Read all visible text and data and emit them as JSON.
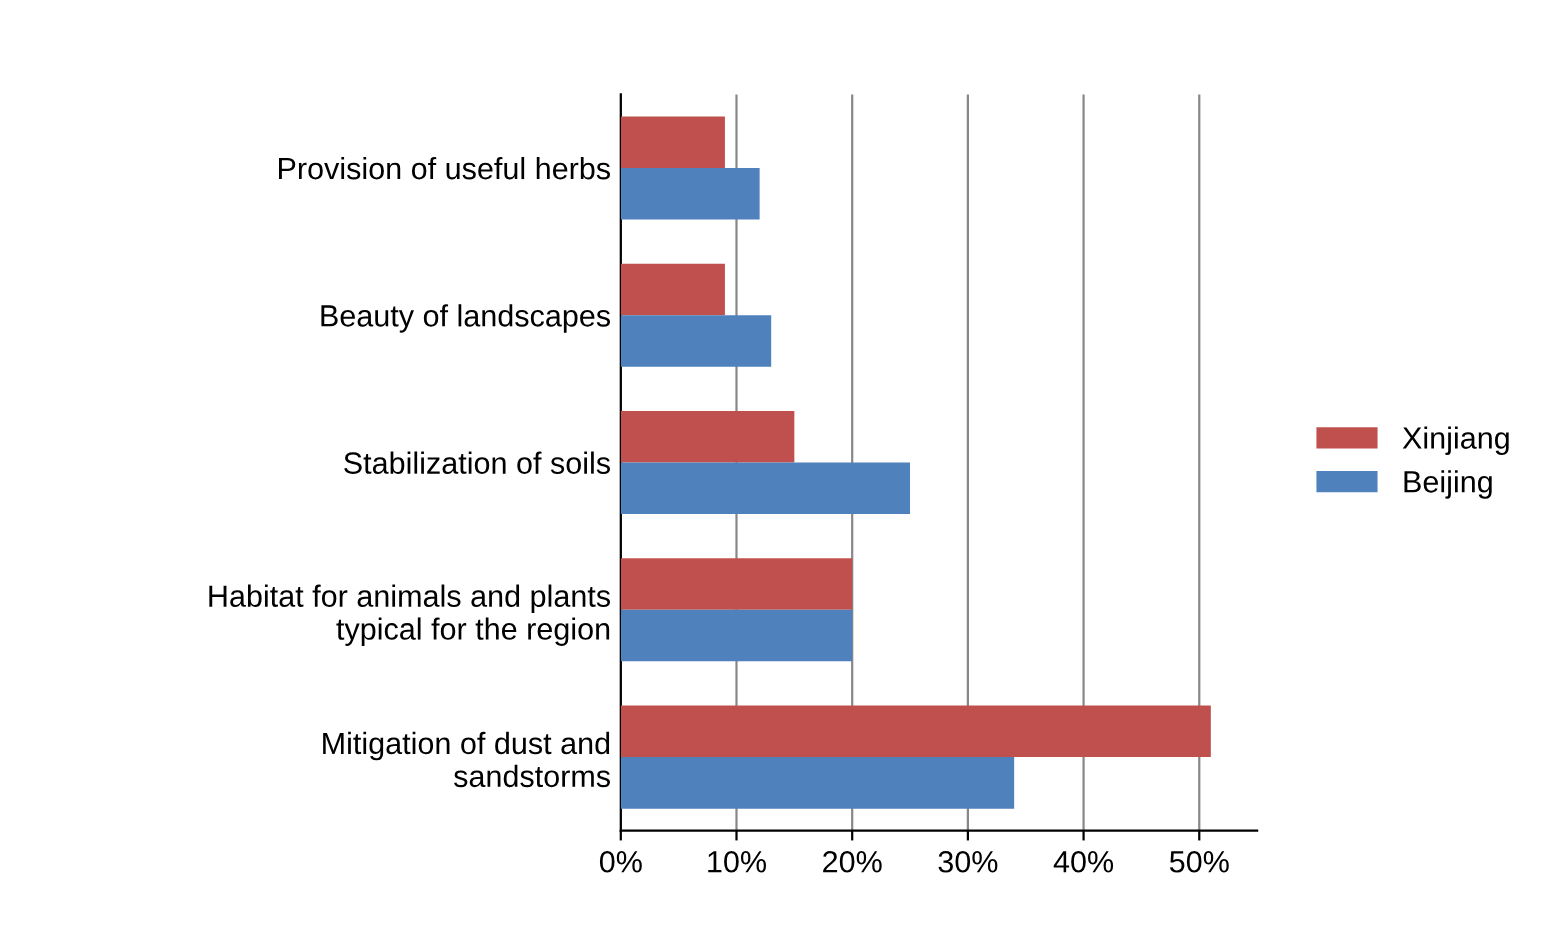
{
  "chart_data": {
    "type": "bar",
    "orientation": "horizontal",
    "categories": [
      "Provision of useful herbs",
      "Beauty of landscapes",
      "Stabilization of soils",
      "Habitat for animals and plants\ntypical for the region",
      "Mitigation of dust and\nsandstorms"
    ],
    "series": [
      {
        "name": "Xinjiang",
        "color": "#c0504d",
        "values": [
          0.09,
          0.09,
          0.15,
          0.2,
          0.51
        ]
      },
      {
        "name": "Beijing",
        "color": "#4f81bd",
        "values": [
          0.12,
          0.13,
          0.25,
          0.2,
          0.34
        ]
      }
    ],
    "xlim": [
      0,
      0.55
    ],
    "xticks": [
      {
        "value": 0,
        "label": "0%"
      },
      {
        "value": 0.1,
        "label": "10%"
      },
      {
        "value": 0.2,
        "label": "20%"
      },
      {
        "value": 0.3,
        "label": "30%"
      },
      {
        "value": 0.4,
        "label": "40%"
      },
      {
        "value": 0.5,
        "label": "50%"
      }
    ],
    "grid": "x",
    "legend": "right"
  }
}
